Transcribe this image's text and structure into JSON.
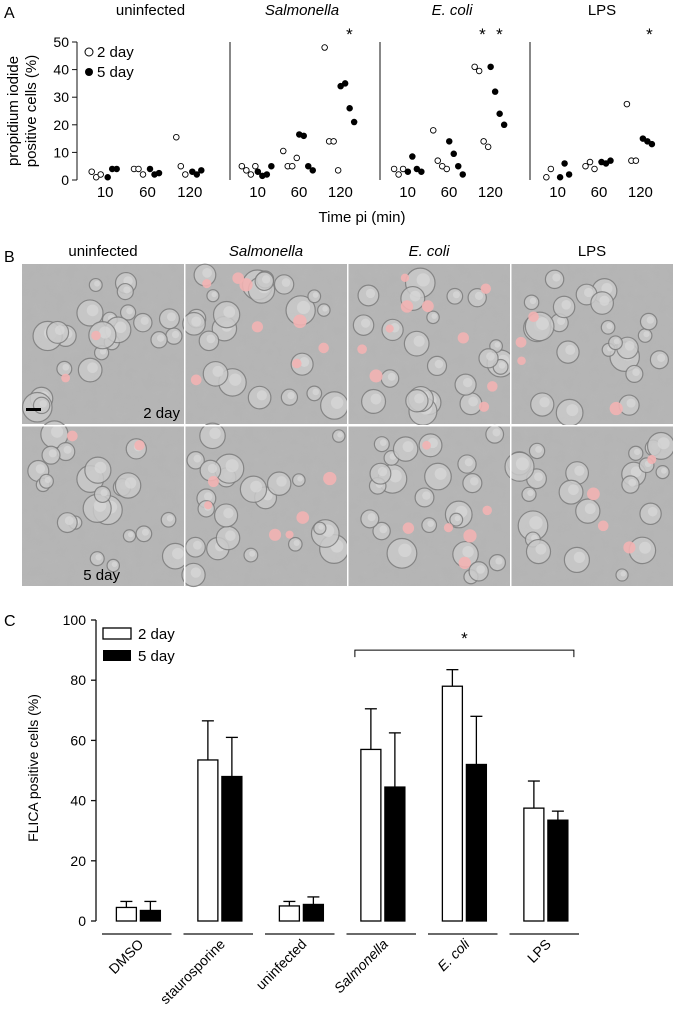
{
  "figure": {
    "panel_labels": [
      "A",
      "B",
      "C"
    ]
  },
  "chart_data": [
    {
      "type": "scatter",
      "panel": "A",
      "ylabel_line1": "propidium iodide",
      "ylabel_line2": "positive cells (%)",
      "xlabel": "Time pi (min)",
      "ylim": [
        0,
        50
      ],
      "yticks": [
        0,
        10,
        20,
        30,
        40,
        50
      ],
      "legend": [
        {
          "name": "2 day",
          "marker": "open-circle"
        },
        {
          "name": "5 day",
          "marker": "filled-circle"
        }
      ],
      "legend_position": "top-left",
      "time_points": [
        "10",
        "60",
        "120"
      ],
      "groups": [
        {
          "name": "uninfected",
          "italic": false,
          "series": [
            {
              "name": "2 day",
              "values": {
                "10": [
                  3,
                  1,
                  2
                ],
                "60": [
                  4,
                  4,
                  2
                ],
                "120": [
                  15.5,
                  5,
                  2
                ]
              }
            },
            {
              "name": "5 day",
              "values": {
                "10": [
                  1,
                  4,
                  4
                ],
                "60": [
                  4,
                  2,
                  2.5
                ],
                "120": [
                  3,
                  2,
                  3.5
                ]
              }
            }
          ],
          "significant": []
        },
        {
          "name": "Salmonella",
          "italic": true,
          "series": [
            {
              "name": "2 day",
              "values": {
                "10": [
                  5,
                  3.5,
                  2,
                  5
                ],
                "60": [
                  10.5,
                  5,
                  5,
                  8
                ],
                "120": [
                  48,
                  14,
                  14,
                  3.5
                ]
              }
            },
            {
              "name": "5 day",
              "values": {
                "10": [
                  3,
                  1.5,
                  2,
                  5
                ],
                "60": [
                  16.5,
                  16,
                  5,
                  3.5
                ],
                "120": [
                  34,
                  35,
                  26,
                  21
                ]
              }
            }
          ],
          "significant": [
            {
              "time": "120",
              "series": "5 day"
            }
          ]
        },
        {
          "name": "E. coli",
          "italic": true,
          "series": [
            {
              "name": "2 day",
              "values": {
                "10": [
                  4,
                  2,
                  4
                ],
                "60": [
                  18,
                  7,
                  5,
                  4
                ],
                "120": [
                  41,
                  39.5,
                  14,
                  12
                ]
              }
            },
            {
              "name": "5 day",
              "values": {
                "10": [
                  3,
                  8.5,
                  4,
                  3
                ],
                "60": [
                  14,
                  9.5,
                  5,
                  2
                ],
                "120": [
                  41,
                  32,
                  24,
                  20
                ]
              }
            }
          ],
          "significant": [
            {
              "time": "120",
              "series": "2 day"
            },
            {
              "time": "120",
              "series": "5 day"
            }
          ]
        },
        {
          "name": "LPS",
          "italic": false,
          "series": [
            {
              "name": "2 day",
              "values": {
                "10": [
                  1,
                  4
                ],
                "60": [
                  5,
                  6.5,
                  4
                ],
                "120": [
                  27.5,
                  7,
                  7
                ]
              }
            },
            {
              "name": "5 day",
              "values": {
                "10": [
                  1,
                  6,
                  2
                ],
                "60": [
                  6.5,
                  6,
                  7
                ],
                "120": [
                  15,
                  14,
                  13
                ]
              }
            }
          ],
          "significant": [
            {
              "time": "120",
              "series": "5 day"
            }
          ]
        }
      ]
    },
    {
      "type": "bar",
      "panel": "C",
      "ylabel": "FLICA positive cells (%)",
      "ylim": [
        0,
        100
      ],
      "yticks": [
        0,
        20,
        40,
        60,
        80,
        100
      ],
      "legend_position": "top-left",
      "categories": [
        "DMSO",
        "staurosporine",
        "uninfected",
        "Salmonella",
        "E. coli",
        "LPS"
      ],
      "categories_italic": [
        false,
        false,
        false,
        true,
        true,
        false
      ],
      "series": [
        {
          "name": "2 day",
          "fill": "open",
          "values": [
            4.5,
            53.5,
            5,
            57,
            78,
            37.5
          ],
          "errors": [
            2,
            13,
            1.5,
            13.5,
            5.5,
            9
          ]
        },
        {
          "name": "5 day",
          "fill": "filled",
          "values": [
            3.5,
            48,
            5.5,
            44.5,
            52,
            33.5
          ],
          "errors": [
            3,
            13,
            2.5,
            18,
            16,
            3
          ]
        }
      ],
      "significance": {
        "label": "*",
        "from_category": "Salmonella",
        "to_category": "LPS",
        "y": 90
      }
    }
  ],
  "micrographs": {
    "columns": [
      {
        "name": "uninfected",
        "italic": false
      },
      {
        "name": "Salmonella",
        "italic": true
      },
      {
        "name": "E. coli",
        "italic": true
      },
      {
        "name": "LPS",
        "italic": false
      }
    ],
    "row_labels": [
      "2 day",
      "5 day"
    ],
    "tint_color": "#f2b3b3",
    "base_color": "#b4b4b4"
  },
  "colors": {
    "axis": "#111111",
    "open_marker_fill": "#ffffff",
    "filled_marker": "#000000"
  }
}
